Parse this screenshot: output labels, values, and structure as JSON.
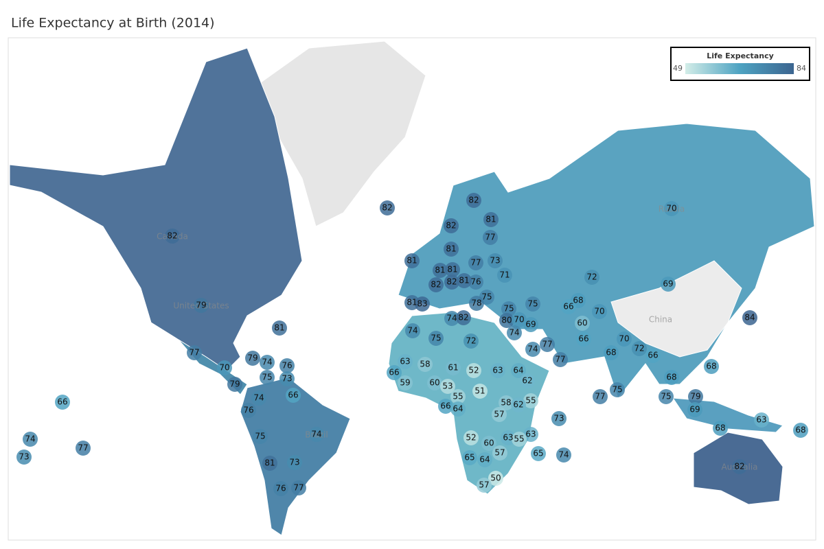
{
  "title": "Life Expectancy at Birth (2014)",
  "legend": {
    "title": "Life Expectancy",
    "min": 49,
    "max": 84,
    "colors": [
      "#d3ede8",
      "#4ea3c2",
      "#3c6590"
    ]
  },
  "place_names": [
    "Canada",
    "United States",
    "Russia",
    "China",
    "Brazil",
    "Australia"
  ],
  "values": [
    82,
    82,
    79,
    81,
    77,
    70,
    79,
    74,
    76,
    75,
    73,
    79,
    66,
    74,
    76,
    75,
    74,
    81,
    73,
    76,
    77,
    66,
    74,
    73,
    77,
    82,
    81,
    82,
    77,
    81,
    81,
    77,
    73,
    81,
    81,
    76,
    71,
    82,
    82,
    81,
    75,
    81,
    83,
    78,
    75,
    75,
    74,
    82,
    80,
    70,
    69,
    74,
    70,
    72,
    69,
    68,
    66,
    70,
    60,
    66,
    70,
    72,
    77,
    74,
    77,
    68,
    66,
    68,
    68,
    84,
    79,
    69,
    75,
    77,
    75,
    63,
    68,
    68,
    82,
    74,
    75,
    72,
    63,
    58,
    61,
    52,
    63,
    64,
    66,
    62,
    59,
    60,
    53,
    51,
    55,
    58,
    55,
    62,
    66,
    64,
    57,
    73,
    63,
    52,
    63,
    55,
    60,
    57,
    65,
    74,
    65,
    64,
    50,
    57
  ]
}
